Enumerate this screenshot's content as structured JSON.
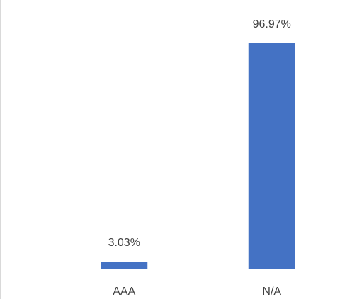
{
  "chart_data": {
    "type": "bar",
    "categories": [
      "AAA",
      "N/A"
    ],
    "values": [
      3.03,
      96.97
    ],
    "data_labels": [
      "3.03%",
      "96.97%"
    ],
    "unit": "%",
    "ylim": [
      0,
      100
    ],
    "grid": false,
    "legend": "none",
    "colors": {
      "bar": "#4472C4",
      "axis": "#d9d9d9",
      "text": "#404040"
    }
  }
}
